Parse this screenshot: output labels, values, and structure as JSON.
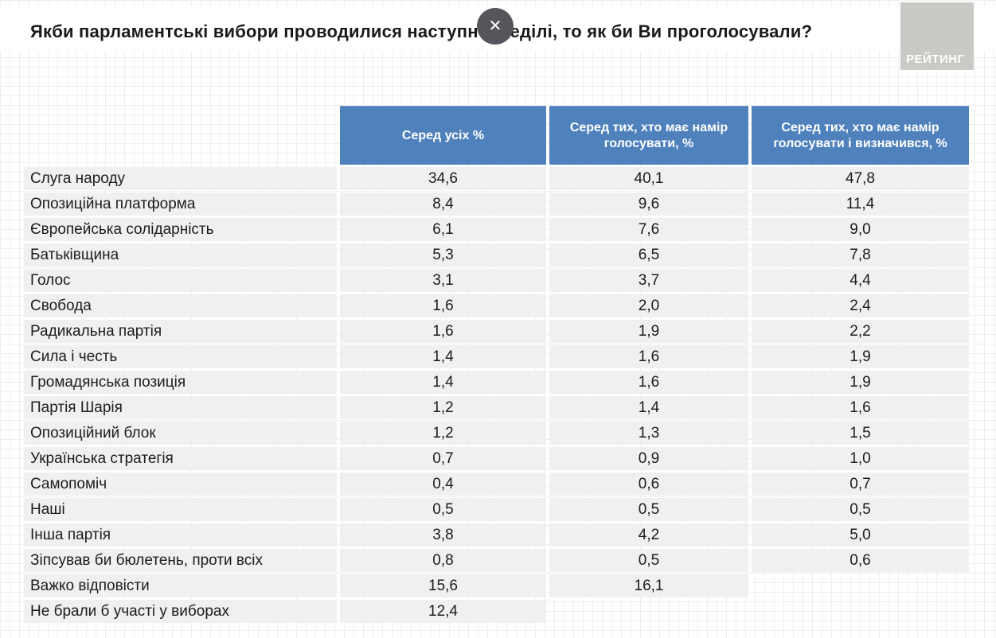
{
  "page": {
    "title": "Якби парламентські вибори проводилися наступної неділі, то як би Ви проголосували?",
    "close_glyph": "✕",
    "logo_text": "РЕЙТИНГ"
  },
  "colors": {
    "header_bg": "#4f81bd",
    "row_bg": "#f0f0f1",
    "logo_bg": "#c9c9c6",
    "close_button_bg": "#54565b",
    "title_text": "#1a1a1a",
    "header_text": "#ffffff"
  },
  "chart_data": {
    "type": "table",
    "title": "Якби парламентські вибори проводилися наступної неділі, то як би Ви проголосували?",
    "columns": [
      "Серед усіх %",
      "Серед тих, хто має намір голосувати, %",
      "Серед тих, хто має намір голосувати і визначився, %"
    ],
    "rows": [
      {
        "label": "Слуга народу",
        "values": [
          "34,6",
          "40,1",
          "47,8"
        ]
      },
      {
        "label": "Опозиційна платформа",
        "values": [
          "8,4",
          "9,6",
          "11,4"
        ]
      },
      {
        "label": "Європейська солідарність",
        "values": [
          "6,1",
          "7,6",
          "9,0"
        ]
      },
      {
        "label": "Батьківщина",
        "values": [
          "5,3",
          "6,5",
          "7,8"
        ]
      },
      {
        "label": "Голос",
        "values": [
          "3,1",
          "3,7",
          "4,4"
        ]
      },
      {
        "label": "Свобода",
        "values": [
          "1,6",
          "2,0",
          "2,4"
        ]
      },
      {
        "label": "Радикальна партія",
        "values": [
          "1,6",
          "1,9",
          "2,2"
        ]
      },
      {
        "label": "Сила і честь",
        "values": [
          "1,4",
          "1,6",
          "1,9"
        ]
      },
      {
        "label": "Громадянська позиція",
        "values": [
          "1,4",
          "1,6",
          "1,9"
        ]
      },
      {
        "label": "Партія Шарія",
        "values": [
          "1,2",
          "1,4",
          "1,6"
        ]
      },
      {
        "label": "Опозиційний блок",
        "values": [
          "1,2",
          "1,3",
          "1,5"
        ]
      },
      {
        "label": "Українська стратегія",
        "values": [
          "0,7",
          "0,9",
          "1,0"
        ]
      },
      {
        "label": "Самопоміч",
        "values": [
          "0,4",
          "0,6",
          "0,7"
        ]
      },
      {
        "label": "Наші",
        "values": [
          "0,5",
          "0,5",
          "0,5"
        ]
      },
      {
        "label": "Інша партія",
        "values": [
          "3,8",
          "4,2",
          "5,0"
        ]
      },
      {
        "label": "Зіпсував би бюлетень, проти всіх",
        "values": [
          "0,8",
          "0,5",
          "0,6"
        ]
      },
      {
        "label": "Важко відповісти",
        "values": [
          "15,6",
          "16,1",
          null
        ]
      },
      {
        "label": "Не брали б участі у виборах",
        "values": [
          "12,4",
          null,
          null
        ]
      }
    ]
  }
}
